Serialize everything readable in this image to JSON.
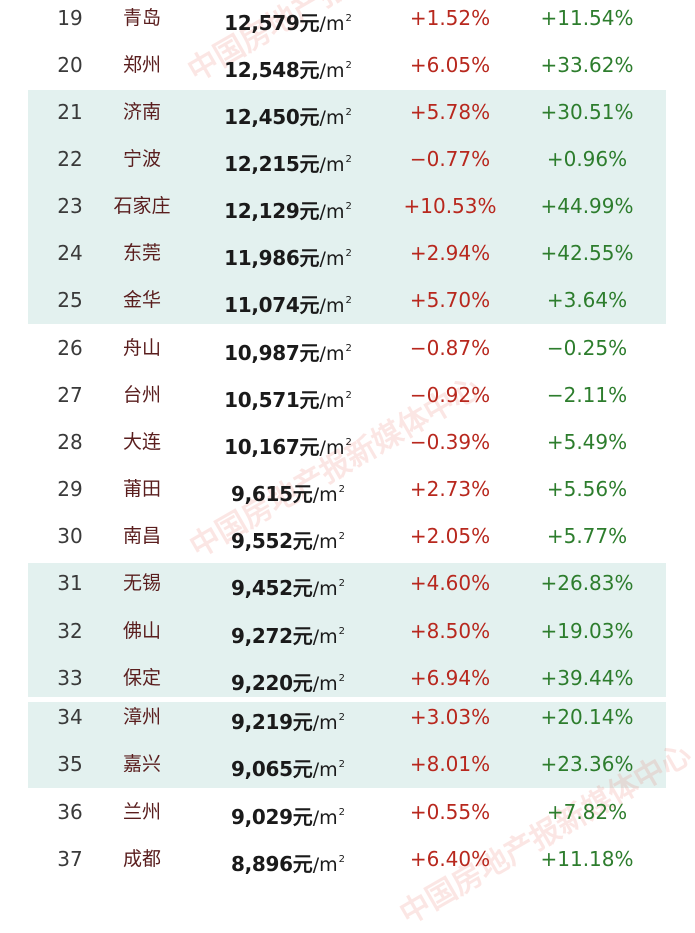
{
  "table": {
    "unit_yuan": "元",
    "unit_area": "/m",
    "unit_sup": "2",
    "rows": [
      {
        "rank": "19",
        "city": "青岛",
        "price": "12,579",
        "mom": "+1.52%",
        "yoy": "+11.54%"
      },
      {
        "rank": "20",
        "city": "郑州",
        "price": "12,548",
        "mom": "+6.05%",
        "yoy": "+33.62%"
      },
      {
        "rank": "21",
        "city": "济南",
        "price": "12,450",
        "mom": "+5.78%",
        "yoy": "+30.51%"
      },
      {
        "rank": "22",
        "city": "宁波",
        "price": "12,215",
        "mom": "−0.77%",
        "yoy": "+0.96%"
      },
      {
        "rank": "23",
        "city": "石家庄",
        "price": "12,129",
        "mom": "+10.53%",
        "yoy": "+44.99%"
      },
      {
        "rank": "24",
        "city": "东莞",
        "price": "11,986",
        "mom": "+2.94%",
        "yoy": "+42.55%"
      },
      {
        "rank": "25",
        "city": "金华",
        "price": "11,074",
        "mom": "+5.70%",
        "yoy": "+3.64%"
      },
      {
        "rank": "26",
        "city": "舟山",
        "price": "10,987",
        "mom": "−0.87%",
        "yoy": "−0.25%"
      },
      {
        "rank": "27",
        "city": "台州",
        "price": "10,571",
        "mom": "−0.92%",
        "yoy": "−2.11%"
      },
      {
        "rank": "28",
        "city": "大连",
        "price": "10,167",
        "mom": "−0.39%",
        "yoy": "+5.49%"
      },
      {
        "rank": "29",
        "city": "莆田",
        "price": "9,615",
        "mom": "+2.73%",
        "yoy": "+5.56%"
      },
      {
        "rank": "30",
        "city": "南昌",
        "price": "9,552",
        "mom": "+2.05%",
        "yoy": "+5.77%"
      },
      {
        "rank": "31",
        "city": "无锡",
        "price": "9,452",
        "mom": "+4.60%",
        "yoy": "+26.83%"
      },
      {
        "rank": "32",
        "city": "佛山",
        "price": "9,272",
        "mom": "+8.50%",
        "yoy": "+19.03%"
      },
      {
        "rank": "33",
        "city": "保定",
        "price": "9,220",
        "mom": "+6.94%",
        "yoy": "+39.44%"
      },
      {
        "rank": "34",
        "city": "漳州",
        "price": "9,219",
        "mom": "+3.03%",
        "yoy": "+20.14%"
      },
      {
        "rank": "35",
        "city": "嘉兴",
        "price": "9,065",
        "mom": "+8.01%",
        "yoy": "+23.36%"
      },
      {
        "rank": "36",
        "city": "兰州",
        "price": "9,029",
        "mom": "+0.55%",
        "yoy": "+7.82%"
      },
      {
        "rank": "37",
        "city": "成都",
        "price": "8,896",
        "mom": "+6.40%",
        "yoy": "+11.18%"
      }
    ]
  },
  "watermarks": [
    {
      "text": "中国房地产报"
    },
    {
      "text": "中国房地产报新媒体中心"
    },
    {
      "text": "中国房地产报新媒体中心"
    }
  ],
  "colors": {
    "band": "#e3f1ef",
    "month_change": "#b8281e",
    "year_change": "#2d7d2d",
    "city": "#5a1e1e",
    "watermark": "#e84a3a"
  }
}
